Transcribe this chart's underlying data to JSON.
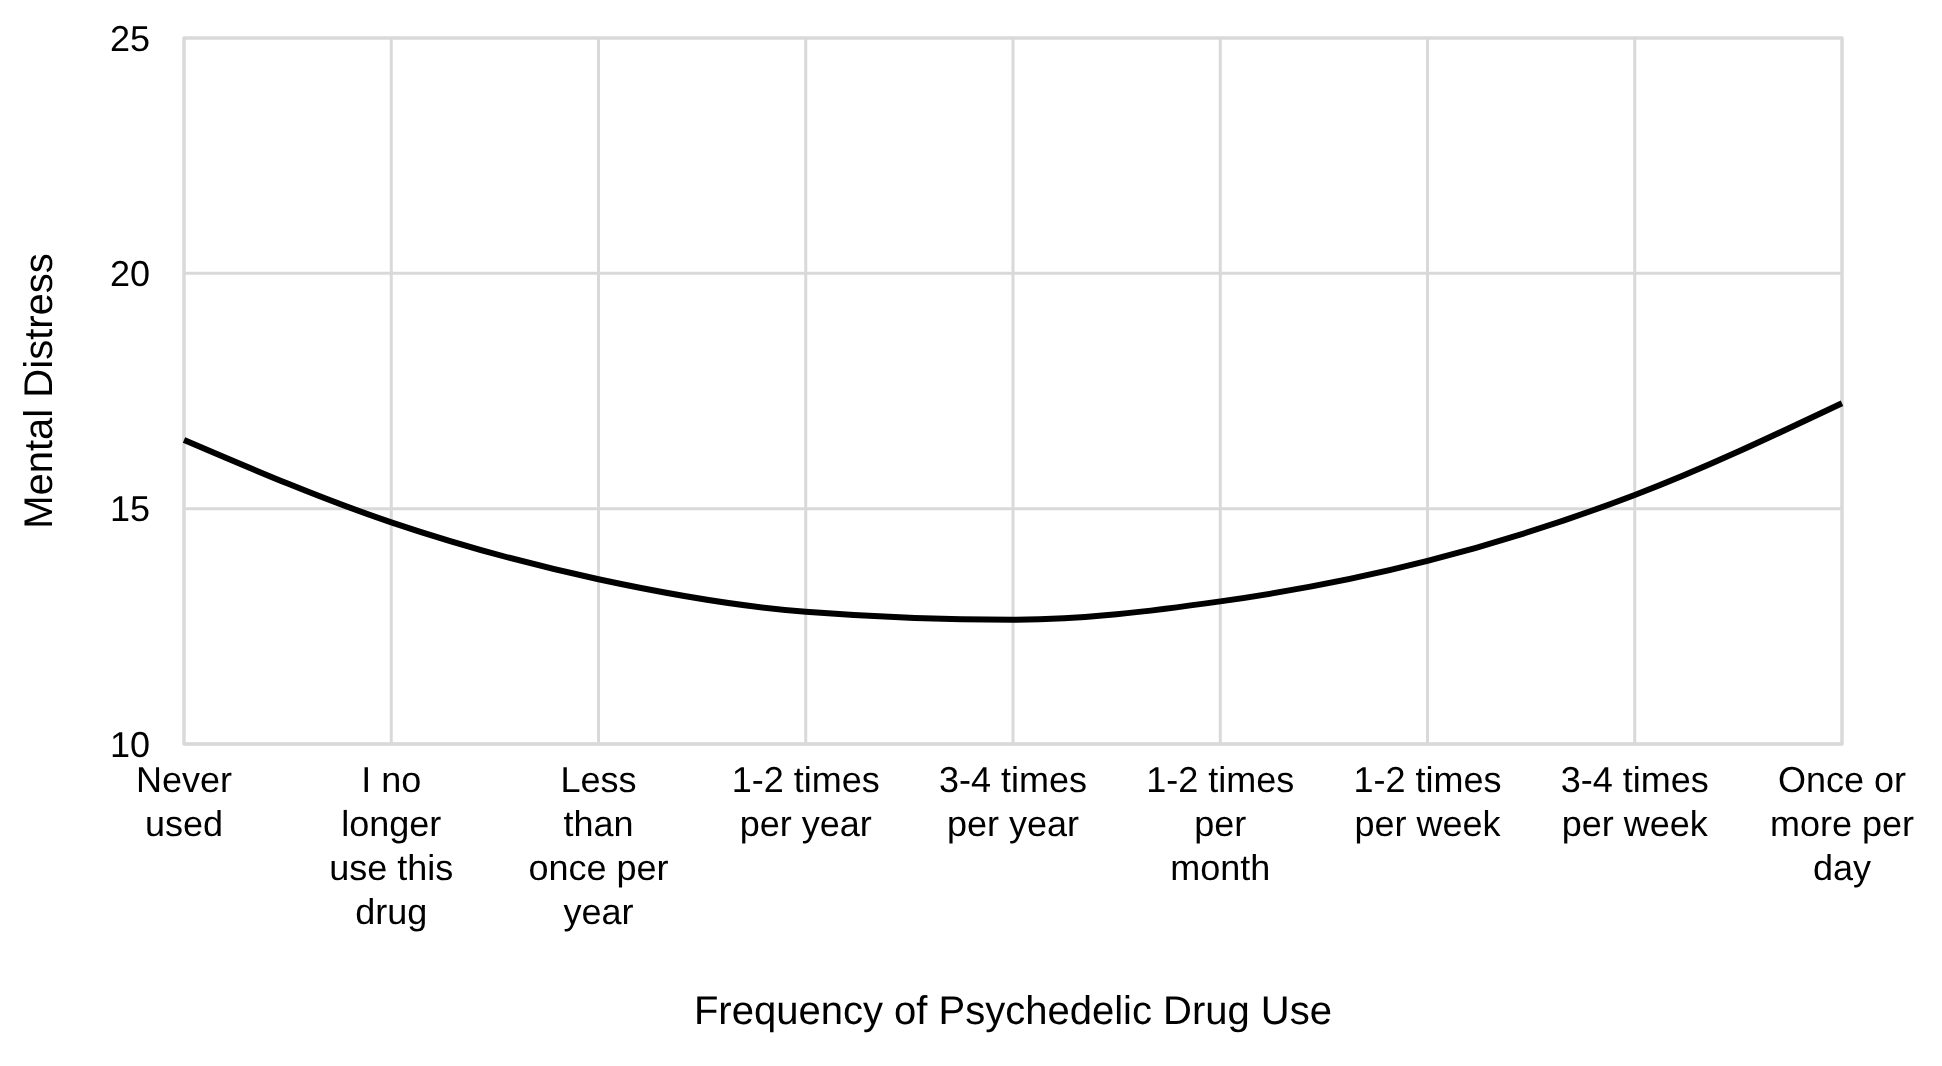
{
  "chart_data": {
    "type": "line",
    "xlabel": "Frequency of Psychedelic Drug Use",
    "ylabel": "Mental Distress",
    "categories": [
      "Never used",
      "I no longer use this drug",
      "Less than once per year",
      "1-2 times per year",
      "3-4 times per year",
      "1-2 times per month",
      "1-2 times per week",
      "3-4 times per week",
      "Once or more per day"
    ],
    "series": [
      {
        "color": "#000000",
        "values": [
          16.46,
          14.71,
          13.5,
          12.81,
          12.64,
          13.03,
          13.89,
          15.29,
          17.24
        ]
      }
    ],
    "ylim": [
      10,
      25
    ],
    "yticks": [
      10,
      15,
      20,
      25
    ],
    "grid": true,
    "marker": "none",
    "line_style": "solid"
  }
}
